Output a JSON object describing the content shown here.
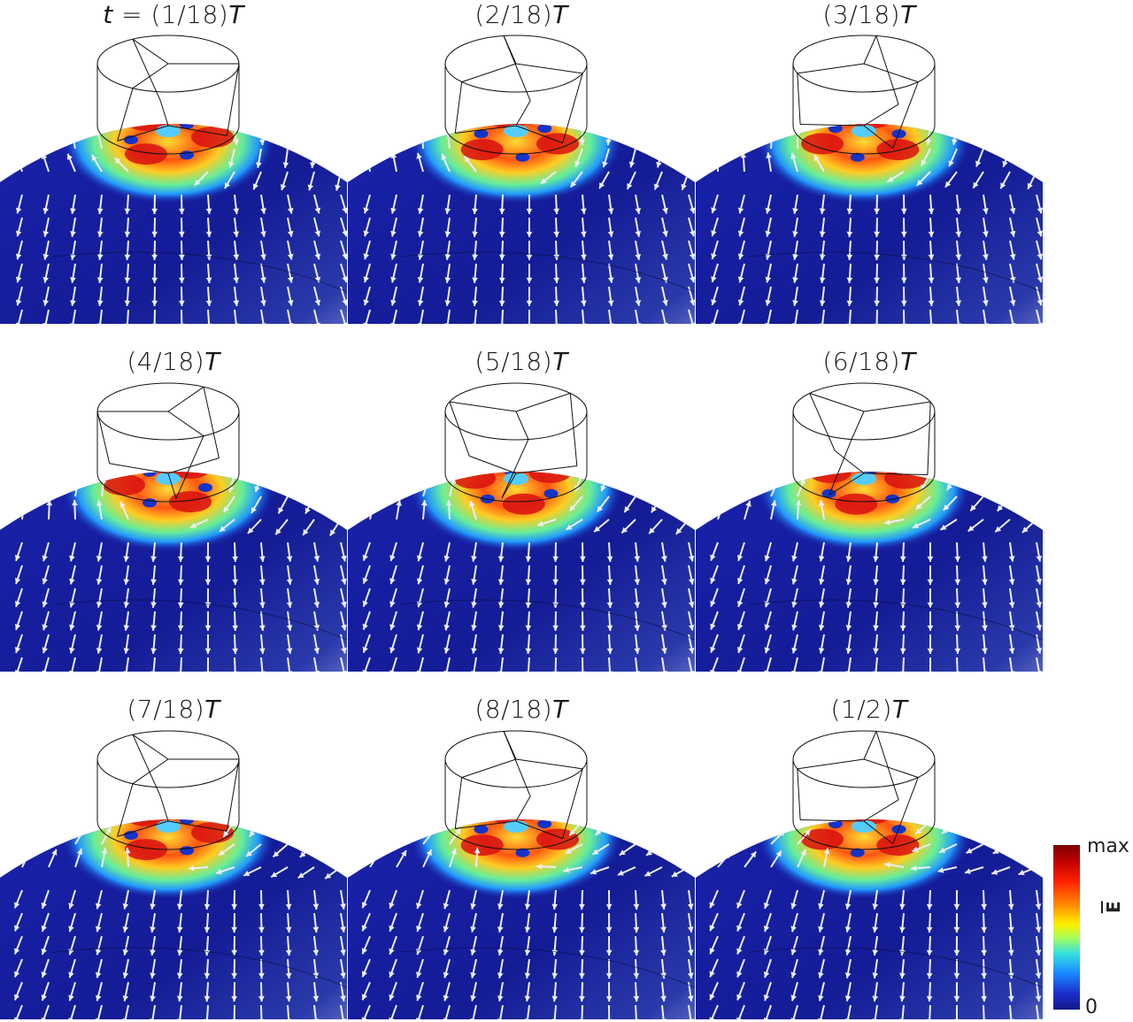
{
  "panels": [
    {
      "num": "(1/18)",
      "prefix": "t = ",
      "var": "T"
    },
    {
      "num": "(2/18)",
      "prefix": "",
      "var": "T"
    },
    {
      "num": "(3/18)",
      "prefix": "",
      "var": "T"
    },
    {
      "num": "(4/18)",
      "prefix": "",
      "var": "T"
    },
    {
      "num": "(5/18)",
      "prefix": "",
      "var": "T"
    },
    {
      "num": "(6/18)",
      "prefix": "",
      "var": "T"
    },
    {
      "num": "(7/18)",
      "prefix": "",
      "var": "T"
    },
    {
      "num": "(8/18)",
      "prefix": "",
      "var": "T"
    },
    {
      "num": "(1/2)",
      "prefix": "",
      "var": "T"
    }
  ],
  "colorbar": {
    "max_label": "max",
    "min_label": "0",
    "quantity": "E"
  },
  "colors": {
    "field_low": "#10189a",
    "field_mid": "#33e0e0",
    "field_high": "#d00000",
    "arrow": "#e8e8ee"
  }
}
